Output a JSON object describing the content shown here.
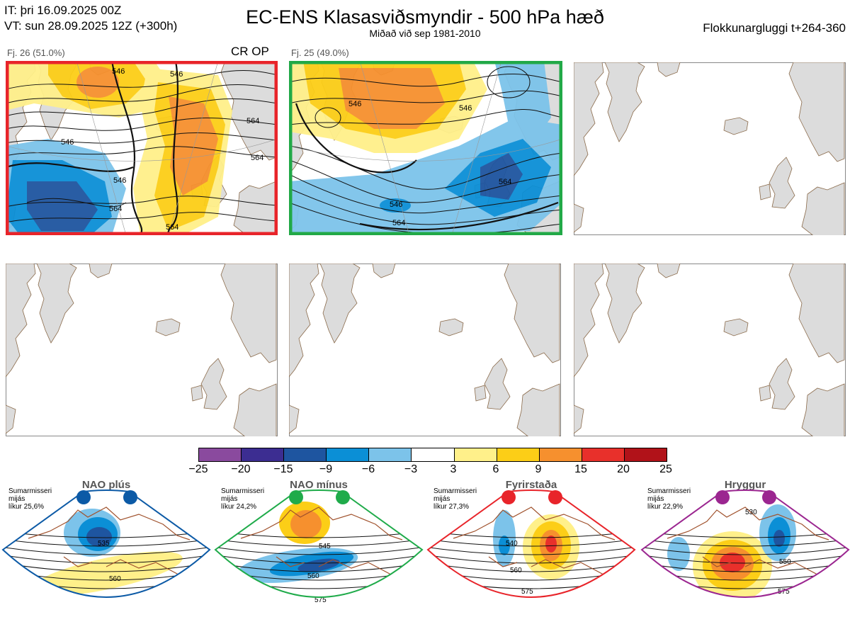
{
  "header": {
    "init_time": "IT: þri 16.09.2025 00Z",
    "valid_time": "VT: sun 28.09.2025 12Z  (+300h)",
    "title": "EC-ENS Klasasviðsmyndir - 500 hPa hæð",
    "subtitle": "Miðað við sep 1981-2010",
    "window": "Flokkunargluggi t+264-360"
  },
  "panels": [
    {
      "label": "Fj. 26 (51.0%)",
      "flag": "CR OP",
      "border_color": "#e8242a",
      "contours": [
        "546",
        "546",
        "564",
        "546",
        "546",
        "564",
        "564",
        "564"
      ]
    },
    {
      "label": "Fj. 25 (49.0%)",
      "flag": "",
      "border_color": "#21a947",
      "contours": [
        "546",
        "546",
        "546",
        "564",
        "564"
      ]
    }
  ],
  "colorbar": {
    "ticks": [
      "−25",
      "−20",
      "−15",
      "−9",
      "−6",
      "−3",
      "3",
      "6",
      "9",
      "15",
      "20",
      "25"
    ],
    "colors": [
      "#8a4a9e",
      "#3c2d91",
      "#1e55a0",
      "#0b8fd6",
      "#7cc3ea",
      "#ffffff",
      "#fff08a",
      "#fcce17",
      "#f6902e",
      "#e8302b",
      "#b11219"
    ]
  },
  "regimes": [
    {
      "name": "NAO plús",
      "season": "Sumarmisseri",
      "type": "mijás",
      "probability": "líkur 25,6%",
      "color": "#0c5aa6",
      "labels": [
        "535",
        "560"
      ]
    },
    {
      "name": "NAO mínus",
      "season": "Sumarmisseri",
      "type": "mijás",
      "probability": "líkur 24,2%",
      "color": "#1fab4a",
      "labels": [
        "545",
        "560",
        "575"
      ]
    },
    {
      "name": "Fyrirstaða",
      "season": "Sumarmisseri",
      "type": "mijás",
      "probability": "líkur 27,3%",
      "color": "#e8242a",
      "labels": [
        "540",
        "560",
        "575"
      ]
    },
    {
      "name": "Hryggur",
      "season": "Sumarmisseri",
      "type": "mijás",
      "probability": "líkur 22,9%",
      "color": "#9b2690",
      "labels": [
        "530",
        "550",
        "575"
      ]
    }
  ]
}
